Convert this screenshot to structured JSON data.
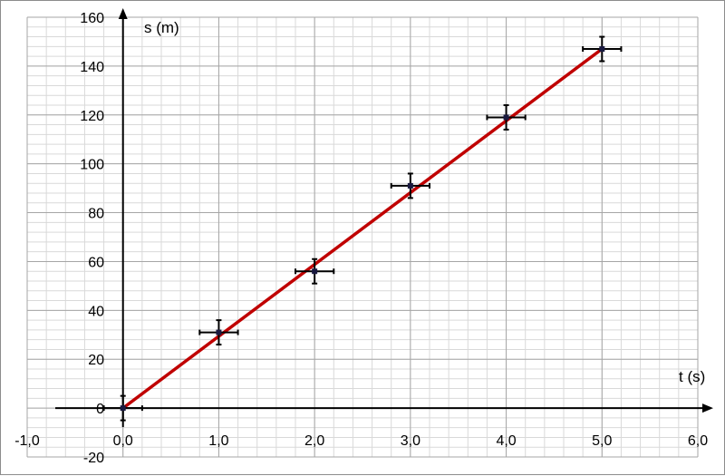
{
  "chart_data": {
    "type": "scatter",
    "xlabel": "t (s)",
    "ylabel": "s (m)",
    "xlim": [
      -1.0,
      6.0
    ],
    "ylim": [
      -20,
      160
    ],
    "xticks": [
      -1.0,
      0.0,
      1.0,
      2.0,
      3.0,
      4.0,
      5.0,
      6.0
    ],
    "xtick_labels": [
      "-1,0",
      "0,0",
      "1,0",
      "2,0",
      "3,0",
      "4,0",
      "5,0",
      "6,0"
    ],
    "yticks": [
      -20,
      0,
      20,
      40,
      60,
      80,
      100,
      120,
      140,
      160
    ],
    "ytick_labels": [
      "-20",
      "0",
      "20",
      "40",
      "60",
      "80",
      "100",
      "120",
      "140",
      "160"
    ],
    "grid": true,
    "series": [
      {
        "x": [
          0.0,
          1.0,
          2.0,
          3.0,
          4.0,
          5.0
        ],
        "y": [
          0,
          31,
          56,
          91,
          119,
          147
        ],
        "x_error": [
          0.2,
          0.2,
          0.2,
          0.2,
          0.2,
          0.2
        ],
        "y_error": [
          5,
          5,
          5,
          5,
          5,
          5
        ],
        "color": "#1a1a40"
      }
    ],
    "fit_line": {
      "x": [
        0.0,
        5.0
      ],
      "y": [
        0,
        147
      ],
      "color": "#c00000"
    }
  }
}
